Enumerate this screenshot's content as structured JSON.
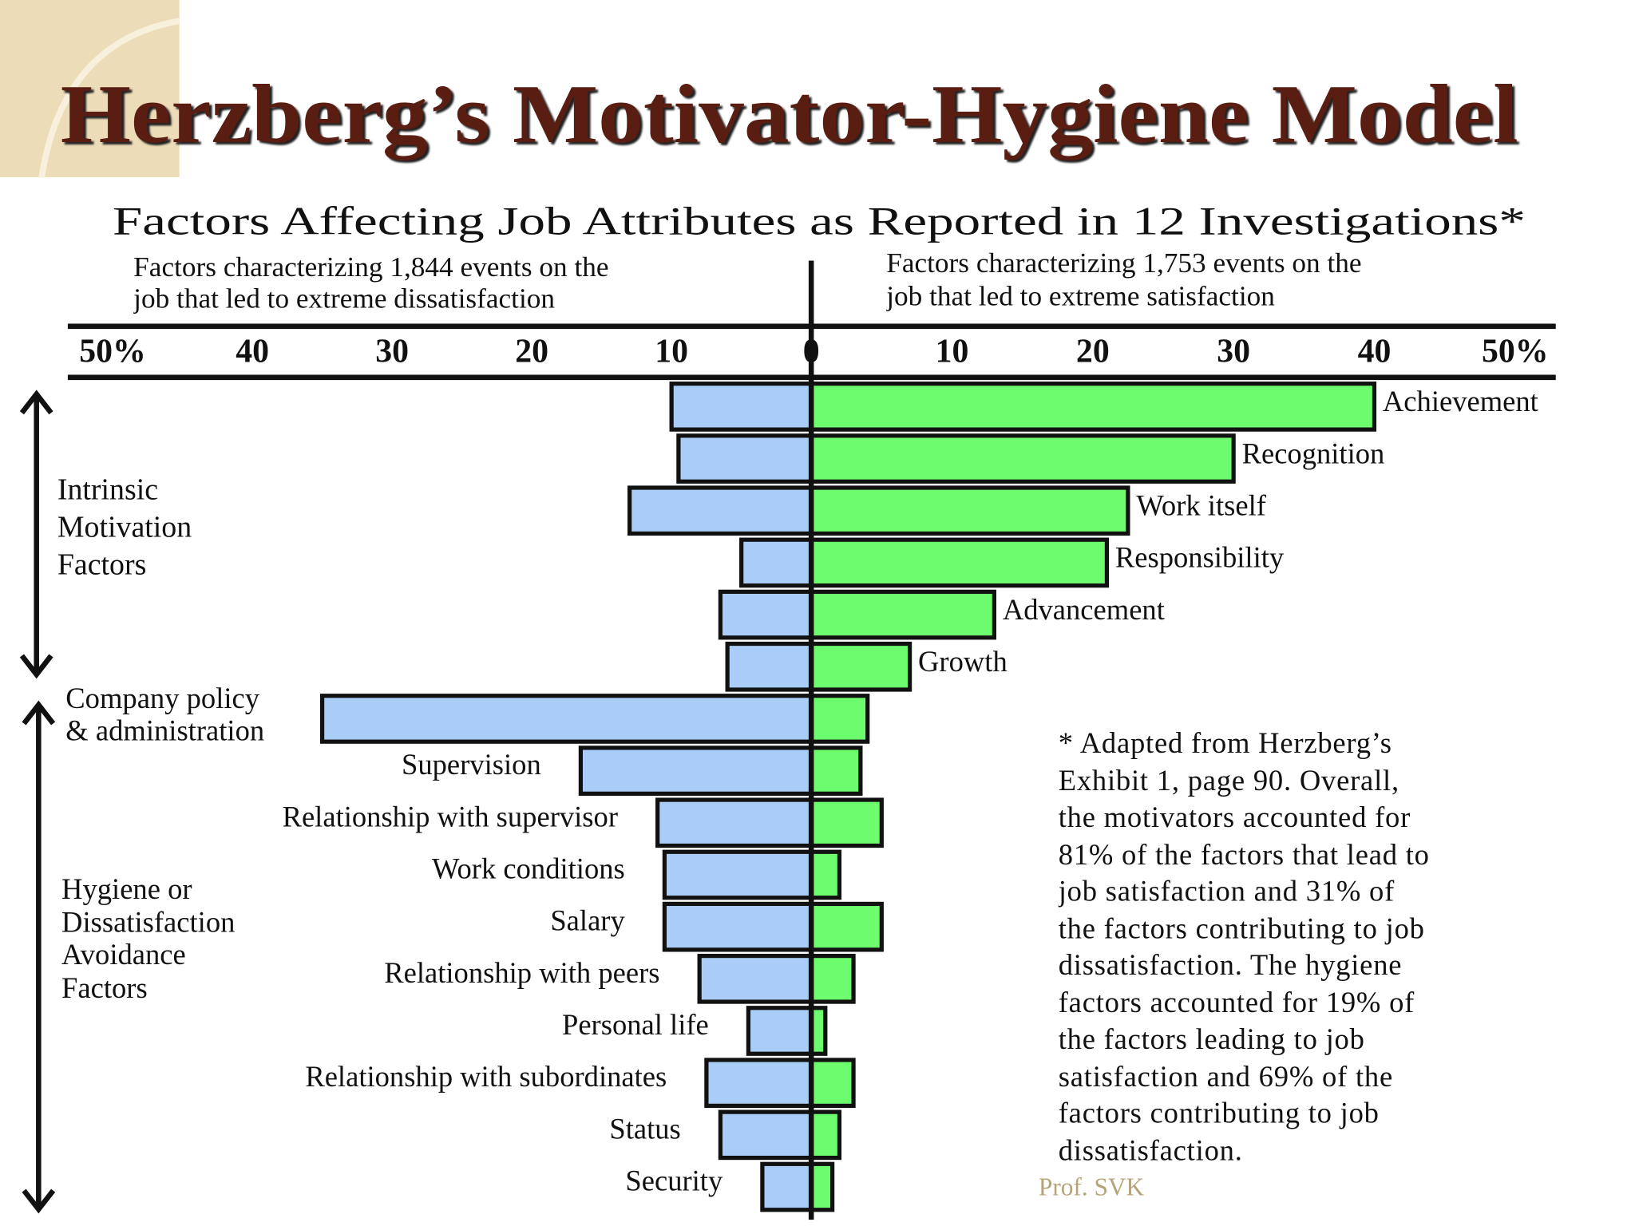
{
  "chart_data": {
    "type": "diverging-bar",
    "title": "Herzberg’s Motivator-Hygiene Model",
    "subtitle": "Factors Affecting Job Attributes as Reported in 12 Investigations*",
    "dissatisfaction_header": "Factors characterizing 1,844 events on the\njob that led to extreme dissatisfaction",
    "satisfaction_header": "Factors characterizing 1,753 events on the\njob that led to extreme satisfaction",
    "dissatisfaction_color": "#a9cdf7",
    "satisfaction_color": "#6dfc6d",
    "left_xlim": [
      0,
      50
    ],
    "right_xlim": [
      0,
      50
    ],
    "left_xticks": [
      {
        "value": 50,
        "label": "50%"
      },
      40,
      30,
      20,
      10
    ],
    "right_xticks": [
      0,
      10,
      20,
      30,
      40,
      {
        "value": 50,
        "label": "50%"
      }
    ],
    "groups": [
      {
        "label": "Intrinsic\nMotivation\nFactors",
        "categories": [
          "Achievement",
          "Recognition",
          "Work itself",
          "Responsibility",
          "Advancement",
          "Growth"
        ],
        "dissatisfaction": [
          10,
          9.5,
          13,
          5,
          6.5,
          6
        ],
        "satisfaction": [
          40,
          30,
          22.5,
          21,
          13,
          7
        ]
      },
      {
        "label": "Hygiene or\nDissatisfaction\nAvoidance\nFactors",
        "categories": [
          "Company policy\n& administration",
          "Supervision",
          "Relationship with supervisor",
          "Work conditions",
          "Salary",
          "Relationship with peers",
          "Personal life",
          "Relationship with subordinates",
          "Status",
          "Security"
        ],
        "dissatisfaction": [
          35,
          16.5,
          11,
          10.5,
          10.5,
          8,
          4.5,
          7.5,
          6.5,
          3.5
        ],
        "satisfaction": [
          4,
          3.5,
          5,
          2,
          5,
          3,
          1,
          3,
          2,
          1.5
        ]
      }
    ],
    "footnote": "* Adapted from Herzberg’s\nExhibit 1, page 90. Overall,\nthe motivators accounted for\n81% of the factors that lead to\njob satisfaction and 31% of\nthe factors contributing to job\ndissatisfaction.  The hygiene\nfactors accounted for 19% of\nthe factors leading to job\nsatisfaction and 69% of the\nfactors contributing to job\ndissatisfaction.",
    "credit": "Prof. SVK"
  }
}
